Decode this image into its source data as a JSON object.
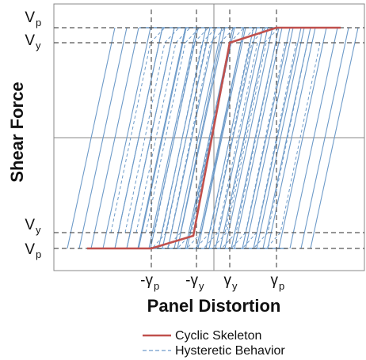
{
  "chart_data": {
    "type": "line",
    "title": "",
    "xlabel": "Panel Distortion",
    "ylabel": "Shear Force",
    "x_ticks": [
      {
        "sign": "-",
        "main": "γ",
        "sub": "p"
      },
      {
        "sign": "-",
        "main": "γ",
        "sub": "y"
      },
      {
        "sign": "",
        "main": "γ",
        "sub": "y"
      },
      {
        "sign": "",
        "main": "γ",
        "sub": "p"
      }
    ],
    "y_ticks_top": [
      {
        "main": "V",
        "sub": "p"
      },
      {
        "main": "V",
        "sub": "y"
      }
    ],
    "y_ticks_bottom": [
      {
        "main": "V",
        "sub": "y"
      },
      {
        "main": "V",
        "sub": "p"
      }
    ],
    "legend": [
      {
        "label": "Cyclic Skeleton",
        "style": "solid",
        "color": "#c0504d"
      },
      {
        "label": "Hysteretic Behavior",
        "style": "dashed",
        "color": "#4f81bd"
      }
    ],
    "colors": {
      "skeleton": "#c0504d",
      "hysteretic": "#6e9bc9",
      "guide": "#555555",
      "axis": "#888888"
    }
  }
}
